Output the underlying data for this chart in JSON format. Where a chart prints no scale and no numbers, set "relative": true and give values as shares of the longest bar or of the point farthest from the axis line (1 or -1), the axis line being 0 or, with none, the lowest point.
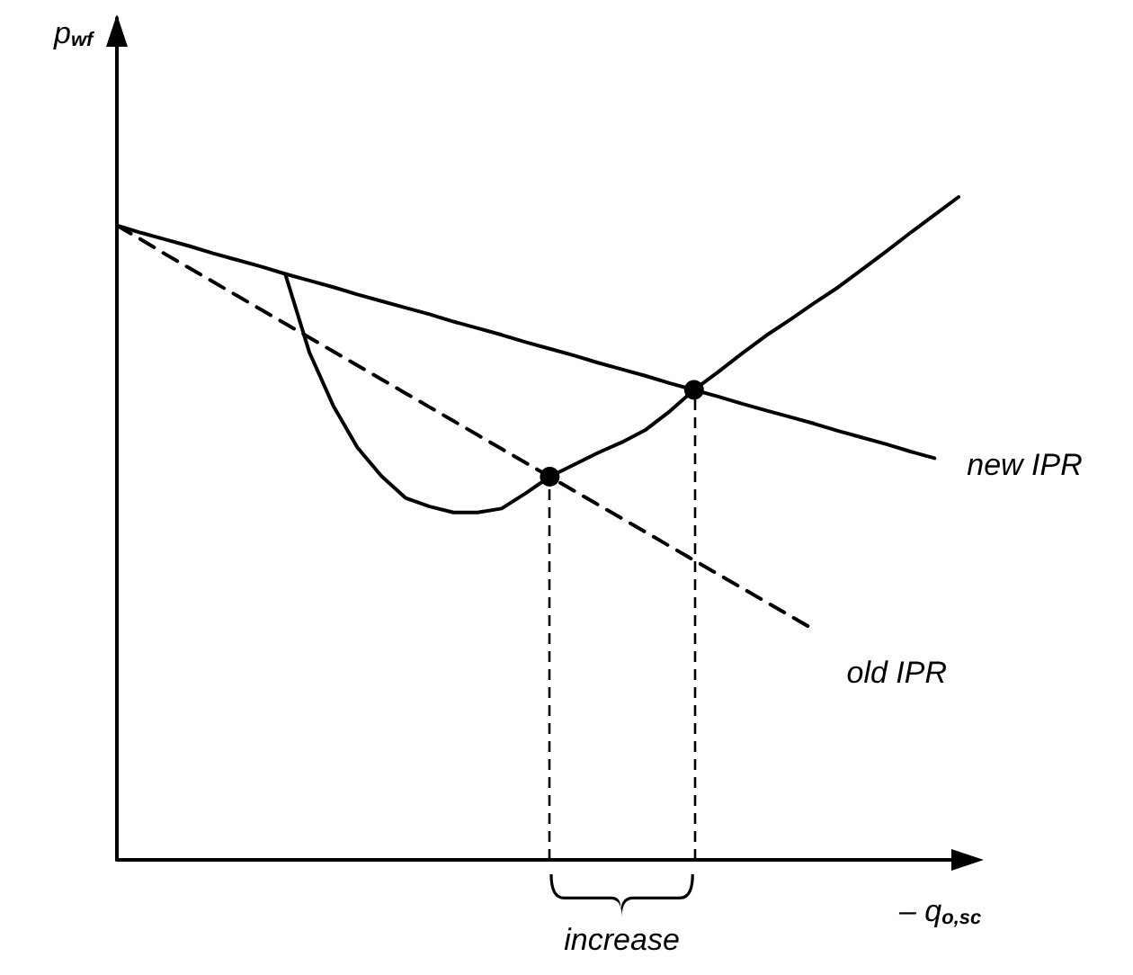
{
  "chart_data": {
    "type": "line",
    "relative": true,
    "xlabel": "– q$_{o,sc}$",
    "ylabel": "p$_{wf}$",
    "categories": [
      null,
      null,
      null,
      null,
      null,
      null,
      null,
      null,
      null,
      null,
      null,
      null,
      null,
      null,
      null,
      null,
      null,
      null,
      null,
      null,
      null,
      null,
      null,
      null,
      null,
      null,
      null,
      null,
      null,
      null,
      null,
      null,
      null,
      null,
      null,
      null
    ],
    "series": [
      {
        "name": "new IPR",
        "color": "#000000",
        "line_style": "solid",
        "values": [
          0.957,
          0.946,
          0.936,
          0.926,
          0.915,
          0.905,
          0.895,
          0.884,
          0.874,
          0.864,
          0.853,
          0.843,
          0.833,
          0.823,
          0.812,
          0.802,
          0.792,
          0.781,
          0.771,
          0.761,
          0.75,
          0.74,
          0.73,
          0.719,
          0.709,
          0.699,
          0.688,
          0.678,
          0.668,
          0.658,
          0.647,
          0.637,
          0.627,
          0.616,
          0.606,
          null
        ]
      },
      {
        "name": "old IPR",
        "color": "#000000",
        "line_style": "dashed",
        "values": [
          0.957,
          0.936,
          0.914,
          0.893,
          0.872,
          0.851,
          0.83,
          0.809,
          0.788,
          0.767,
          0.746,
          0.725,
          0.704,
          0.683,
          0.662,
          0.641,
          0.62,
          0.599,
          0.578,
          0.557,
          0.536,
          0.515,
          0.494,
          0.473,
          0.452,
          0.431,
          0.41,
          0.389,
          0.368,
          0.347,
          null,
          null,
          null,
          null,
          null,
          null
        ]
      },
      {
        "color": "#000000",
        "line_style": "solid",
        "values": [
          null,
          null,
          null,
          null,
          null,
          null,
          null,
          0.884,
          0.766,
          0.685,
          0.622,
          0.579,
          0.546,
          0.533,
          0.524,
          0.524,
          0.53,
          0.553,
          0.578,
          0.596,
          0.614,
          0.63,
          0.649,
          0.677,
          0.709,
          0.736,
          0.764,
          0.791,
          0.815,
          0.84,
          0.864,
          0.891,
          0.918,
          0.946,
          0.973,
          1.0
        ]
      },
      {
        "type": "line",
        "line_style": "none",
        "marker": "circle",
        "color": "#000000",
        "values": [
          null,
          null,
          null,
          null,
          null,
          null,
          null,
          null,
          null,
          null,
          null,
          null,
          null,
          null,
          null,
          null,
          null,
          null,
          0.578,
          null,
          null,
          null,
          null,
          null,
          0.709,
          null,
          null,
          null,
          null,
          null,
          null,
          null,
          null,
          null,
          null,
          null
        ]
      }
    ],
    "annotations": [
      "increase"
    ],
    "grid": false,
    "legend": false
  }
}
